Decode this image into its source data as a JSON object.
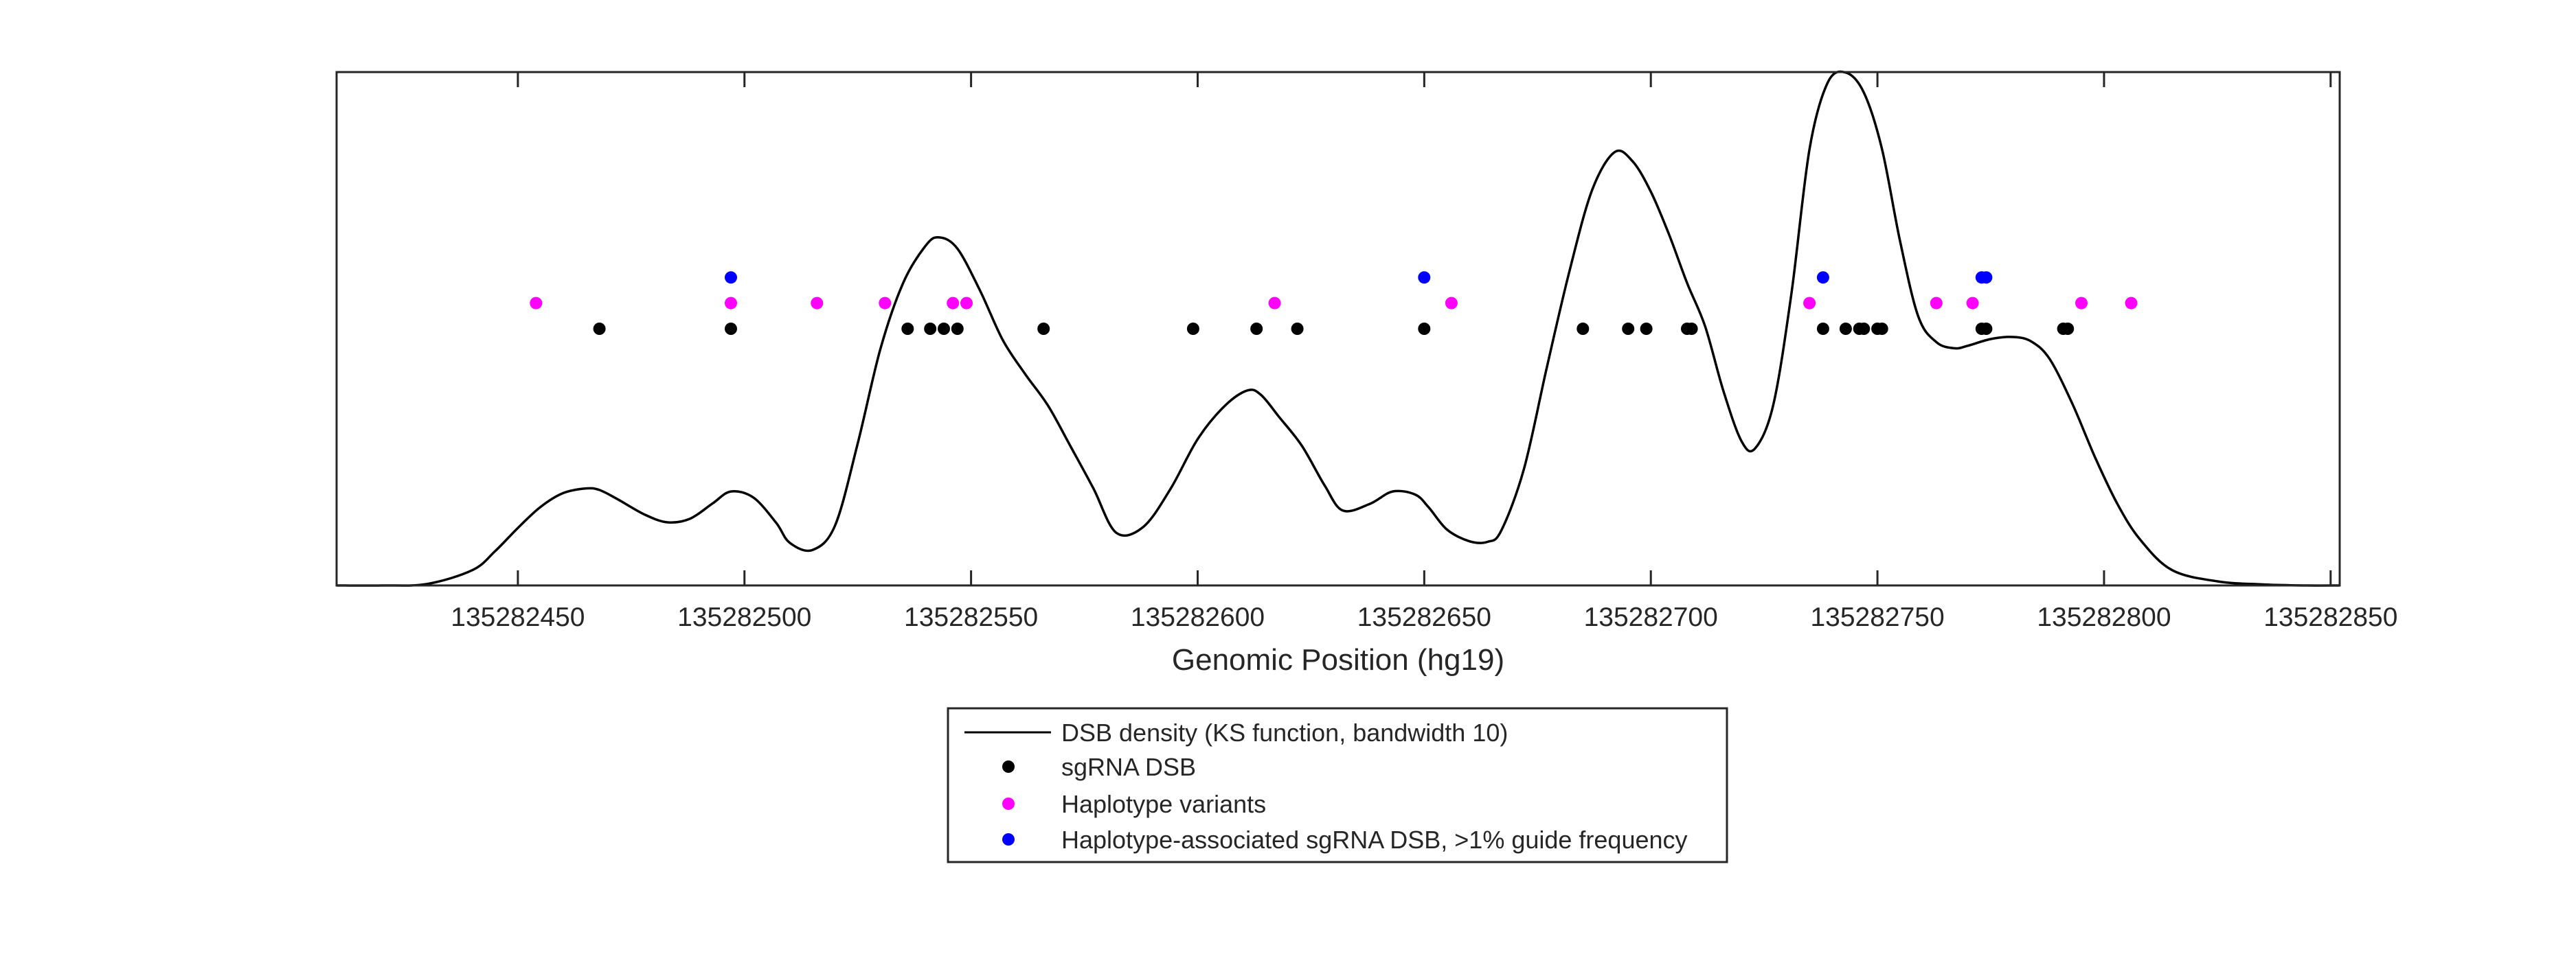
{
  "chart_data": {
    "type": "line",
    "xlabel": "Genomic Position (hg19)",
    "ylabel": "",
    "title": "",
    "xlim": [
      135282410,
      135282852
    ],
    "ylim": [
      0,
      1
    ],
    "x_ticks": [
      135282450,
      135282500,
      135282550,
      135282600,
      135282650,
      135282700,
      135282750,
      135282800,
      135282850
    ],
    "x_tick_labels": [
      "135282450",
      "135282500",
      "135282550",
      "135282600",
      "135282650",
      "135282700",
      "135282750",
      "135282800",
      "135282850"
    ],
    "y_ticks_visible": false,
    "grid": false,
    "legend_position": "bottom-center-outside",
    "series": [
      {
        "name": "DSB density (KS function, bandwidth 10)",
        "kind": "line",
        "color": "#000000",
        "x": [
          135282410,
          135282420,
          135282430,
          135282440,
          135282445,
          135282450,
          135282455,
          135282460,
          135282465,
          135282468,
          135282472,
          135282478,
          135282483,
          135282488,
          135282493,
          135282497,
          135282502,
          135282507,
          135282510,
          135282515,
          135282520,
          135282525,
          135282530,
          135282535,
          135282540,
          135282543,
          135282547,
          135282552,
          135282557,
          135282562,
          135282567,
          135282572,
          135282577,
          135282582,
          135282588,
          135282594,
          135282600,
          135282606,
          135282611,
          135282614,
          135282618,
          135282623,
          135282628,
          135282632,
          135282638,
          135282643,
          135282648,
          135282651,
          135282655,
          135282660,
          135282664,
          135282667,
          135282672,
          135282677,
          135282682,
          135282687,
          135282692,
          135282696,
          135282700,
          135282704,
          135282708,
          135282712,
          135282716,
          135282720,
          135282723,
          135282727,
          135282731,
          135282735,
          135282739,
          135282743,
          135282747,
          135282751,
          135282755,
          135282759,
          135282763,
          135282767,
          135282770,
          135282775,
          135282780,
          135282784,
          135282788,
          135282793,
          135282798,
          135282803,
          135282808,
          135282815,
          135282825,
          135282835,
          135282845,
          135282852
        ],
        "y": [
          0.0,
          0.0,
          0.003,
          0.03,
          0.067,
          0.112,
          0.153,
          0.18,
          0.189,
          0.186,
          0.168,
          0.138,
          0.123,
          0.13,
          0.16,
          0.183,
          0.171,
          0.122,
          0.083,
          0.069,
          0.117,
          0.277,
          0.461,
          0.589,
          0.662,
          0.678,
          0.656,
          0.574,
          0.478,
          0.411,
          0.35,
          0.27,
          0.189,
          0.103,
          0.114,
          0.188,
          0.285,
          0.35,
          0.38,
          0.371,
          0.328,
          0.272,
          0.195,
          0.146,
          0.159,
          0.183,
          0.177,
          0.152,
          0.109,
          0.086,
          0.085,
          0.107,
          0.227,
          0.423,
          0.611,
          0.769,
          0.844,
          0.826,
          0.767,
          0.684,
          0.589,
          0.504,
          0.379,
          0.281,
          0.267,
          0.351,
          0.567,
          0.849,
          0.979,
          0.999,
          0.96,
          0.85,
          0.67,
          0.524,
          0.474,
          0.462,
          0.467,
          0.48,
          0.484,
          0.475,
          0.441,
          0.354,
          0.25,
          0.158,
          0.089,
          0.03,
          0.008,
          0.002,
          0.0,
          0.0
        ]
      },
      {
        "name": "sgRNA DSB",
        "kind": "points",
        "color": "#000000",
        "level": 0.5,
        "x": [
          135282468,
          135282497,
          135282536,
          135282541,
          135282544,
          135282547,
          135282566,
          135282599,
          135282613,
          135282622,
          135282650,
          135282685,
          135282695,
          135282699,
          135282708,
          135282709,
          135282738,
          135282743,
          135282746,
          135282747,
          135282750,
          135282751,
          135282773,
          135282774,
          135282791,
          135282792
        ]
      },
      {
        "name": "Haplotype variants",
        "kind": "points",
        "color": "#ff00ff",
        "level": 0.55,
        "x": [
          135282454,
          135282497,
          135282516,
          135282531,
          135282546,
          135282549,
          135282617,
          135282656,
          135282735,
          135282763,
          135282771,
          135282795,
          135282806
        ]
      },
      {
        "name": "Haplotype-associated sgRNA DSB, >1% guide frequency",
        "kind": "points",
        "color": "#0000ff",
        "level": 0.6,
        "x": [
          135282497,
          135282650,
          135282738,
          135282773,
          135282774
        ]
      }
    ]
  }
}
